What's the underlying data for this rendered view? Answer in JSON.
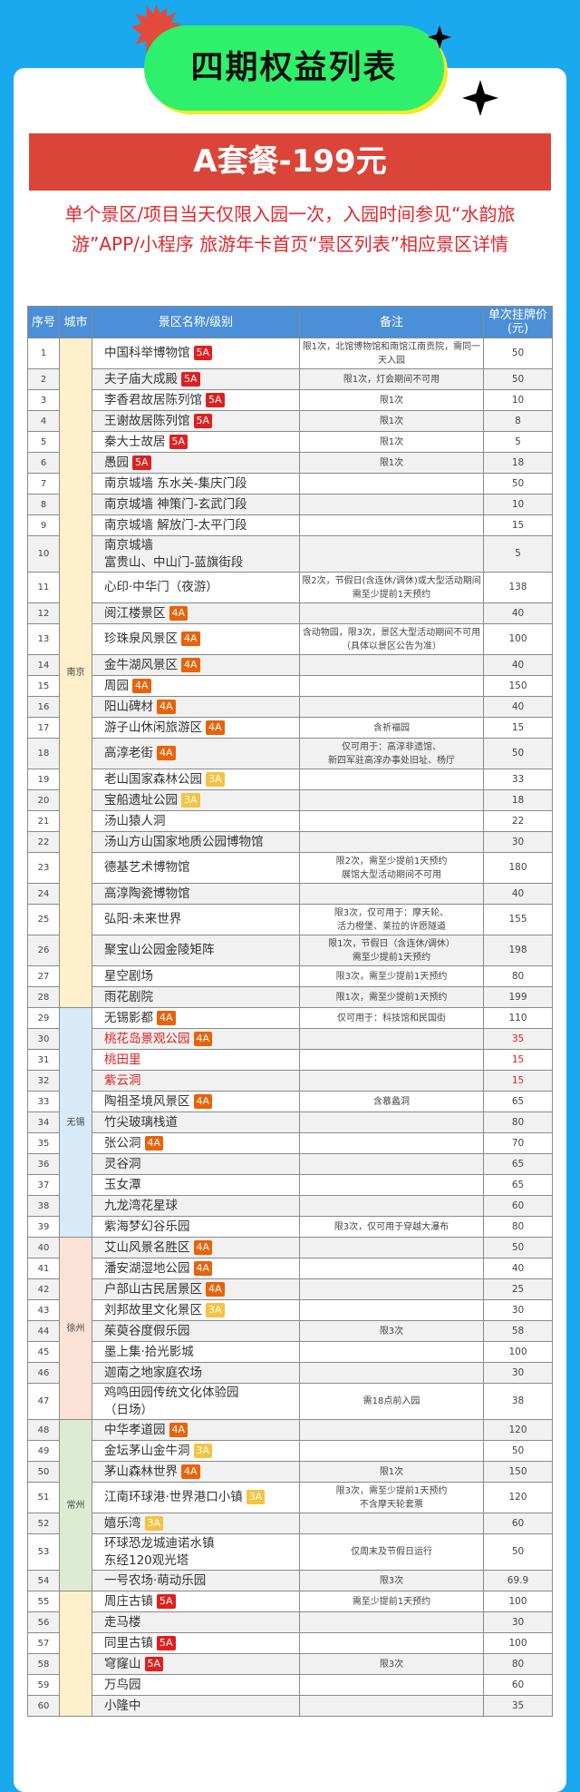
{
  "header": {
    "title": "四期权益列表"
  },
  "banner": {
    "label": "A套餐-199元"
  },
  "notice": "单个景区/项目当天仅限入园一次，入园时间参见“水韵旅游”APP/小程序 旅游年卡首页“景区列表”相应景区详情",
  "colors": {
    "background": "#1aa8ee",
    "banner": "#db4539",
    "title_blob": "#2ef06a",
    "header": "#4b8fd9",
    "notice_text": "#e0282e",
    "badge_5A": "#e02020",
    "badge_4A": "#e8630a",
    "badge_3A": "#f5c342"
  },
  "table": {
    "columns": [
      "序号",
      "城市",
      "景区名称/级别",
      "备注",
      "单次挂牌价\n(元)"
    ],
    "city_groups": [
      {
        "city": "南京",
        "color": "#fdf0cb",
        "from": 1,
        "to": 28
      },
      {
        "city": "无锡",
        "color": "#d8e9f8",
        "from": 29,
        "to": 39
      },
      {
        "city": "徐州",
        "color": "#fbe1d6",
        "from": 40,
        "to": 47
      },
      {
        "city": "常州",
        "color": "#dcecd3",
        "from": 48,
        "to": 54
      },
      {
        "city": "",
        "color": "#fdf0cb",
        "from": 55,
        "to": 60
      }
    ],
    "rows": [
      {
        "no": "1",
        "name": "中国科举博物馆",
        "badge": "5A",
        "note": "限1次，北馆博物馆和南馆江南贡院，需同一天入园",
        "price": "50"
      },
      {
        "no": "2",
        "name": "夫子庙大成殿",
        "badge": "5A",
        "note": "限1次，灯会期间不可用",
        "price": "50"
      },
      {
        "no": "3",
        "name": "李香君故居陈列馆",
        "badge": "5A",
        "note": "限1次",
        "price": "10"
      },
      {
        "no": "4",
        "name": "王谢故居陈列馆",
        "badge": "5A",
        "note": "限1次",
        "price": "8"
      },
      {
        "no": "5",
        "name": "秦大士故居",
        "badge": "5A",
        "note": "限1次",
        "price": "5"
      },
      {
        "no": "6",
        "name": "愚园",
        "badge": "5A",
        "note": "限1次",
        "price": "18"
      },
      {
        "no": "7",
        "name": "南京城墙 东水关-集庆门段",
        "badge": "",
        "note": "",
        "price": "50"
      },
      {
        "no": "8",
        "name": "南京城墙 神策门-玄武门段",
        "badge": "",
        "note": "",
        "price": "10"
      },
      {
        "no": "9",
        "name": "南京城墙 解放门-太平门段",
        "badge": "",
        "note": "",
        "price": "15"
      },
      {
        "no": "10",
        "name": "南京城墙\n富贵山、中山门-蓝旗街段",
        "badge": "",
        "note": "",
        "price": "5"
      },
      {
        "no": "11",
        "name": "心印·中华门（夜游）",
        "badge": "",
        "note": "限2次，节假日(含连休/调休)或大型活动期间需至少提前1天预约",
        "price": "138"
      },
      {
        "no": "12",
        "name": "阅江楼景区",
        "badge": "4A",
        "note": "",
        "price": "40"
      },
      {
        "no": "13",
        "name": "珍珠泉风景区",
        "badge": "4A",
        "note": "含动物园，限3次，景区大型活动期间不可用（具体以景区公告为准）",
        "price": "100"
      },
      {
        "no": "14",
        "name": "金牛湖风景区",
        "badge": "4A",
        "note": "",
        "price": "40"
      },
      {
        "no": "15",
        "name": "周园",
        "badge": "4A",
        "note": "",
        "price": "150"
      },
      {
        "no": "16",
        "name": "阳山碑材",
        "badge": "4A",
        "note": "",
        "price": "40"
      },
      {
        "no": "17",
        "name": "游子山休闲旅游区",
        "badge": "4A",
        "note": "含祈福园",
        "price": "15"
      },
      {
        "no": "18",
        "name": "高淳老街",
        "badge": "4A",
        "note": "仅可用于：高淳非遗馆、\n新四军驻高淳办事处旧址、杨厅",
        "price": "50"
      },
      {
        "no": "19",
        "name": "老山国家森林公园",
        "badge": "3A",
        "note": "",
        "price": "33"
      },
      {
        "no": "20",
        "name": "宝船遗址公园",
        "badge": "3A",
        "note": "",
        "price": "18"
      },
      {
        "no": "21",
        "name": "汤山猿人洞",
        "badge": "",
        "note": "",
        "price": "22"
      },
      {
        "no": "22",
        "name": "汤山方山国家地质公园博物馆",
        "badge": "",
        "note": "",
        "price": "30"
      },
      {
        "no": "23",
        "name": "德基艺术博物馆",
        "badge": "",
        "note": "限2次，需至少提前1天预约\n展馆大型活动期间不可用",
        "price": "180"
      },
      {
        "no": "24",
        "name": "高淳陶瓷博物馆",
        "badge": "",
        "note": "",
        "price": "40"
      },
      {
        "no": "25",
        "name": "弘阳·未来世界",
        "badge": "",
        "note": "限3次，仅可用于：摩天轮、\n活力橙堡、莱拉的许愿隧道",
        "price": "155"
      },
      {
        "no": "26",
        "name": "聚宝山公园金陵矩阵",
        "badge": "",
        "note": "限1次，节假日（含连休/调休）\n需至少提前1天预约",
        "price": "198"
      },
      {
        "no": "27",
        "name": "星空剧场",
        "badge": "",
        "note": "限3次，需至少提前1天预约",
        "price": "80"
      },
      {
        "no": "28",
        "name": "雨花剧院",
        "badge": "",
        "note": "限1次，需至少提前1天预约",
        "price": "199"
      },
      {
        "no": "29",
        "name": "无锡影都",
        "badge": "4A",
        "note": "仅可用于：科技馆和民国街",
        "price": "110"
      },
      {
        "no": "30",
        "name": "桃花岛景观公园",
        "badge": "4A",
        "note": "",
        "price": "35",
        "red": true
      },
      {
        "no": "31",
        "name": "桃田里",
        "badge": "",
        "note": "",
        "price": "15",
        "red": true
      },
      {
        "no": "32",
        "name": "紫云洞",
        "badge": "",
        "note": "",
        "price": "15",
        "red": true
      },
      {
        "no": "33",
        "name": "陶祖圣境风景区",
        "badge": "4A",
        "note": "含慕蠡洞",
        "price": "65"
      },
      {
        "no": "34",
        "name": "竹尖玻璃栈道",
        "badge": "",
        "note": "",
        "price": "80"
      },
      {
        "no": "35",
        "name": "张公洞",
        "badge": "4A",
        "note": "",
        "price": "70"
      },
      {
        "no": "36",
        "name": "灵谷洞",
        "badge": "",
        "note": "",
        "price": "65"
      },
      {
        "no": "37",
        "name": "玉女潭",
        "badge": "",
        "note": "",
        "price": "65"
      },
      {
        "no": "38",
        "name": "九龙湾花星球",
        "badge": "",
        "note": "",
        "price": "60"
      },
      {
        "no": "39",
        "name": "紫海梦幻谷乐园",
        "badge": "",
        "note": "限3次，仅可用于穿越大瀑布",
        "price": "80"
      },
      {
        "no": "40",
        "name": "艾山风景名胜区",
        "badge": "4A",
        "note": "",
        "price": "50"
      },
      {
        "no": "41",
        "name": "潘安湖湿地公园",
        "badge": "4A",
        "note": "",
        "price": "40"
      },
      {
        "no": "42",
        "name": "户部山古民居景区",
        "badge": "4A",
        "note": "",
        "price": "25"
      },
      {
        "no": "43",
        "name": "刘邦故里文化景区",
        "badge": "3A",
        "note": "",
        "price": "30"
      },
      {
        "no": "44",
        "name": "茱萸谷度假乐园",
        "badge": "",
        "note": "限3次",
        "price": "58"
      },
      {
        "no": "45",
        "name": "墨上集·拾光影城",
        "badge": "",
        "note": "",
        "price": "100"
      },
      {
        "no": "46",
        "name": "迦南之地家庭农场",
        "badge": "",
        "note": "",
        "price": "30"
      },
      {
        "no": "47",
        "name": "鸡鸣田园传统文化体验园\n（日场）",
        "badge": "",
        "note": "需18点前入园",
        "price": "38"
      },
      {
        "no": "48",
        "name": "中华孝道园",
        "badge": "4A",
        "note": "",
        "price": "120"
      },
      {
        "no": "49",
        "name": "金坛茅山金牛洞",
        "badge": "3A",
        "note": "",
        "price": "50"
      },
      {
        "no": "50",
        "name": "茅山森林世界",
        "badge": "4A",
        "note": "限1次",
        "price": "150"
      },
      {
        "no": "51",
        "name": "江南环球港·世界港口小镇",
        "badge": "3A",
        "note": "限3次，需至少提前1天预约\n不含摩天轮套票",
        "price": "120"
      },
      {
        "no": "52",
        "name": "嬉乐湾",
        "badge": "3A",
        "note": "",
        "price": "60"
      },
      {
        "no": "53",
        "name": "环球恐龙城迪诺水镇\n东经120观光塔",
        "badge": "",
        "note": "仅周末及节假日运行",
        "price": "50"
      },
      {
        "no": "54",
        "name": "一号农场·萌动乐园",
        "badge": "",
        "note": "限3次",
        "price": "69.9"
      },
      {
        "no": "55",
        "name": "周庄古镇",
        "badge": "5A",
        "note": "需至少提前1天预约",
        "price": "100"
      },
      {
        "no": "56",
        "name": "走马楼",
        "badge": "",
        "note": "",
        "price": "30"
      },
      {
        "no": "57",
        "name": "同里古镇",
        "badge": "5A",
        "note": "",
        "price": "100"
      },
      {
        "no": "58",
        "name": "穹窿山",
        "badge": "5A",
        "note": "限3次",
        "price": "80"
      },
      {
        "no": "59",
        "name": "万鸟园",
        "badge": "",
        "note": "",
        "price": "60"
      },
      {
        "no": "60",
        "name": "小隆中",
        "badge": "",
        "note": "",
        "price": "35"
      }
    ]
  }
}
